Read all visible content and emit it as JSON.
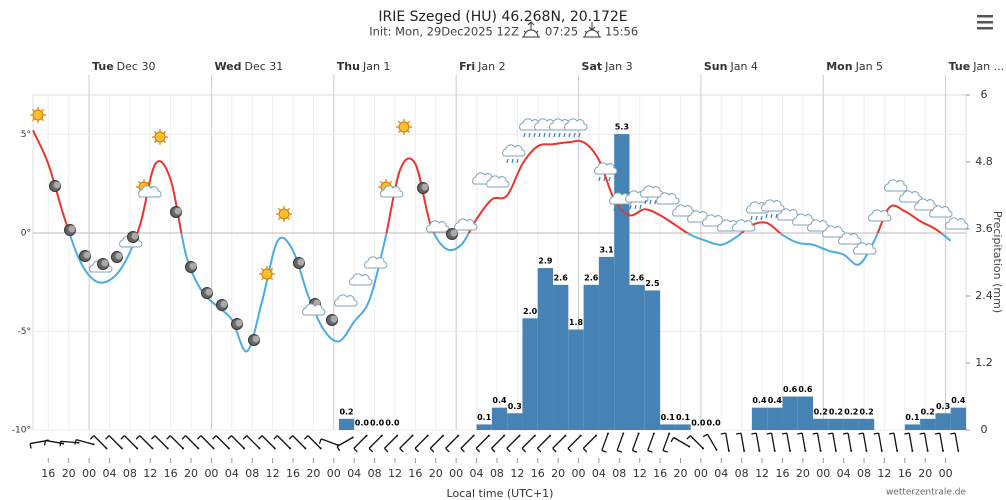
{
  "title": "IRIE Szeged (HU) 46.268N, 20.172E",
  "subtitle": "Init: Mon, 29Dec2025 12Z",
  "sunrise": "07:25",
  "sunset": "15:56",
  "chart_data": {
    "type": "meteogram",
    "x_label": "Local time (UTC+1)",
    "y2_label": "Precipitation (mm)",
    "credit": "wetterzentrale.de",
    "xlim": [
      0,
      183
    ],
    "xticks": [
      {
        "value": 3,
        "label": "16"
      },
      {
        "value": 7,
        "label": "20"
      },
      {
        "value": 11,
        "label": "00"
      },
      {
        "value": 15,
        "label": "04"
      },
      {
        "value": 19,
        "label": "08"
      },
      {
        "value": 23,
        "label": "12"
      },
      {
        "value": 27,
        "label": "16"
      },
      {
        "value": 31,
        "label": "20"
      },
      {
        "value": 35,
        "label": "00"
      },
      {
        "value": 39,
        "label": "04"
      },
      {
        "value": 43,
        "label": "08"
      },
      {
        "value": 47,
        "label": "12"
      },
      {
        "value": 51,
        "label": "16"
      },
      {
        "value": 55,
        "label": "20"
      },
      {
        "value": 59,
        "label": "00"
      },
      {
        "value": 63,
        "label": "04"
      },
      {
        "value": 67,
        "label": "08"
      },
      {
        "value": 71,
        "label": "12"
      },
      {
        "value": 75,
        "label": "16"
      },
      {
        "value": 79,
        "label": "20"
      },
      {
        "value": 83,
        "label": "00"
      },
      {
        "value": 87,
        "label": "04"
      },
      {
        "value": 91,
        "label": "08"
      },
      {
        "value": 95,
        "label": "12"
      },
      {
        "value": 99,
        "label": "16"
      },
      {
        "value": 103,
        "label": "20"
      },
      {
        "value": 107,
        "label": "00"
      },
      {
        "value": 111,
        "label": "04"
      },
      {
        "value": 115,
        "label": "08"
      },
      {
        "value": 119,
        "label": "12"
      },
      {
        "value": 123,
        "label": "16"
      },
      {
        "value": 127,
        "label": "20"
      },
      {
        "value": 131,
        "label": "00"
      },
      {
        "value": 135,
        "label": "04"
      },
      {
        "value": 139,
        "label": "08"
      },
      {
        "value": 143,
        "label": "12"
      },
      {
        "value": 147,
        "label": "16"
      },
      {
        "value": 151,
        "label": "20"
      },
      {
        "value": 155,
        "label": "00"
      },
      {
        "value": 159,
        "label": "04"
      },
      {
        "value": 163,
        "label": "08"
      },
      {
        "value": 167,
        "label": "12"
      },
      {
        "value": 171,
        "label": "16"
      },
      {
        "value": 175,
        "label": "20"
      },
      {
        "value": 179,
        "label": "00"
      }
    ],
    "day_ticks": [
      {
        "value": 11,
        "label": "Tue",
        "date": "Dec 30"
      },
      {
        "value": 35,
        "label": "Wed",
        "date": "Dec 31"
      },
      {
        "value": 59,
        "label": "Thu",
        "date": "Jan 1"
      },
      {
        "value": 83,
        "label": "Fri",
        "date": "Jan 2"
      },
      {
        "value": 107,
        "label": "Sat",
        "date": "Jan 3"
      },
      {
        "value": 131,
        "label": "Sun",
        "date": "Jan 4"
      },
      {
        "value": 155,
        "label": "Mon",
        "date": "Jan 5"
      },
      {
        "value": 179,
        "label": "Tue",
        "date": "Jan ..."
      }
    ],
    "ylim": [
      -10,
      7
    ],
    "yticks": [
      {
        "value": -10,
        "label": "-10°"
      },
      {
        "value": -5,
        "label": "-5°"
      },
      {
        "value": 0,
        "label": "0°"
      },
      {
        "value": 5,
        "label": "5°"
      }
    ],
    "y2lim": [
      0,
      6
    ],
    "y2ticks": [
      0,
      1.2,
      2.4,
      3.6,
      4.8,
      6
    ],
    "temperature": {
      "color_above": "#e8352e",
      "color_below": "#4bacdf",
      "x": [
        0,
        3,
        6,
        9,
        12,
        15,
        18,
        21,
        24,
        27,
        30,
        33,
        36,
        39,
        42,
        45,
        48,
        51,
        54,
        57,
        60,
        63,
        66,
        69,
        72,
        75,
        78,
        81,
        84,
        87,
        90,
        93,
        96,
        99,
        102,
        105,
        108,
        111,
        114,
        117,
        120,
        123,
        126,
        129,
        132,
        135,
        138,
        141,
        144,
        147,
        150,
        153,
        156,
        159,
        162,
        165,
        168,
        171,
        174,
        177,
        180
      ],
      "values": [
        5.2,
        3.5,
        0.9,
        -1.3,
        -2.4,
        -2.4,
        -1.5,
        0.4,
        3.5,
        2.7,
        -1.1,
        -2.9,
        -3.7,
        -4.4,
        -6.0,
        -3.4,
        -0.4,
        -0.9,
        -3.2,
        -4.9,
        -5.5,
        -4.5,
        -3.4,
        -0.4,
        3.2,
        3.5,
        0.4,
        -0.8,
        -0.6,
        0.7,
        1.7,
        1.9,
        3.5,
        4.4,
        4.5,
        4.6,
        4.6,
        3.7,
        1.7,
        0.9,
        1.2,
        0.9,
        0.4,
        -0.1,
        -0.4,
        -0.6,
        -0.2,
        0.4,
        0.5,
        -0.1,
        -0.5,
        -0.6,
        -0.9,
        -1.1,
        -1.6,
        -0.4,
        1.3,
        1.1,
        0.6,
        0.2,
        -0.4
      ]
    },
    "precipitation": {
      "axis": "y2",
      "color": "#4682b4",
      "x": [
        60,
        63,
        66,
        69,
        87,
        90,
        93,
        96,
        99,
        102,
        105,
        108,
        111,
        114,
        117,
        120,
        123,
        126,
        129,
        132,
        141,
        144,
        147,
        150,
        153,
        156,
        159,
        162,
        171,
        174,
        177,
        180
      ],
      "values": [
        0.2,
        0,
        0,
        0,
        0.1,
        0.4,
        0.3,
        2,
        2.9,
        2.6,
        1.8,
        2.6,
        3.1,
        5.3,
        2.6,
        2.5,
        0.1,
        0.1,
        0,
        0,
        0.4,
        0.4,
        0.6,
        0.6,
        0.2,
        0.2,
        0.2,
        0.2,
        0.1,
        0.2,
        0.3,
        0.4
      ],
      "value_labels": [
        "0.2",
        "0.0",
        "0.0",
        "0.0",
        "0.1",
        "0.4",
        "0.3",
        "2.0",
        "2.9",
        "2.6",
        "1.8",
        "2.6",
        "3.1",
        "5.3",
        "2.6",
        "2.5",
        "0.1",
        "0.1",
        "0.0",
        "0.0",
        "0.4",
        "0.4",
        "0.6",
        "0.6",
        "0.2",
        "0.2",
        "0.2",
        "0.2",
        "0.1",
        "0.2",
        "0.3",
        "0.4"
      ]
    },
    "wind": {
      "x": [
        0,
        3,
        6,
        9,
        12,
        15,
        18,
        21,
        24,
        27,
        30,
        33,
        36,
        39,
        42,
        45,
        48,
        51,
        54,
        57,
        60,
        63,
        66,
        69,
        72,
        75,
        78,
        81,
        84,
        87,
        90,
        93,
        96,
        99,
        102,
        105,
        108,
        111,
        114,
        117,
        120,
        123,
        126,
        129,
        132,
        135,
        138,
        141,
        144,
        147,
        150,
        153,
        156,
        159,
        162,
        165,
        168,
        171,
        174,
        177,
        180
      ],
      "direction": [
        80,
        100,
        95,
        105,
        135,
        135,
        135,
        135,
        135,
        135,
        135,
        135,
        135,
        135,
        135,
        135,
        135,
        135,
        135,
        110,
        60,
        45,
        45,
        45,
        45,
        45,
        45,
        45,
        45,
        45,
        45,
        45,
        45,
        45,
        45,
        45,
        45,
        20,
        20,
        20,
        20,
        20,
        120,
        135,
        150,
        170,
        170,
        170,
        170,
        170,
        170,
        170,
        170,
        170,
        170,
        170,
        170,
        170,
        170,
        170,
        170
      ]
    }
  }
}
